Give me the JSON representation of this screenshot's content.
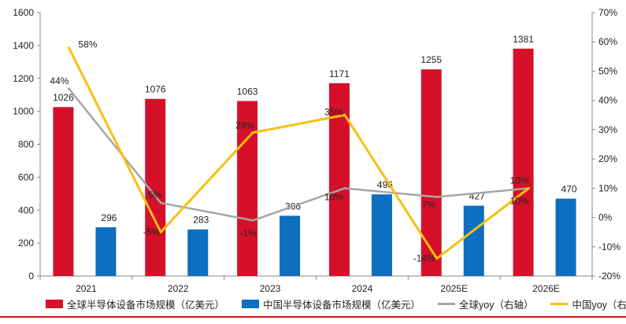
{
  "chart_data": {
    "type": "bar",
    "title": "",
    "categories": [
      "2021",
      "2022",
      "2023",
      "2024",
      "2025E",
      "2026E"
    ],
    "ylim_left": [
      0,
      1600
    ],
    "yticks_left": [
      0,
      200,
      400,
      600,
      800,
      1000,
      1200,
      1400,
      1600
    ],
    "ylim_right": [
      -20,
      70
    ],
    "yticks_right": [
      "-20%",
      "-10%",
      "0%",
      "10%",
      "20%",
      "30%",
      "40%",
      "50%",
      "60%",
      "70%"
    ],
    "grid": false,
    "legend_position": "bottom",
    "bar_series": [
      {
        "name": "全球半导体设备市场规模（亿美元）",
        "values": [
          1026,
          1076,
          1063,
          1171,
          1255,
          1381
        ],
        "labels": [
          "1026",
          "1076",
          "1063",
          "1171",
          "1255",
          "1381"
        ],
        "color": "#d7102a"
      },
      {
        "name": "中国半导体设备市场规模（亿美元）",
        "values": [
          296,
          283,
          366,
          496,
          427,
          470
        ],
        "labels": [
          "296",
          "283",
          "366",
          "496",
          "427",
          "470"
        ],
        "color": "#0c6fc0"
      }
    ],
    "line_series": [
      {
        "name": "全球yoy（右轴）",
        "values": [
          44,
          5,
          -1,
          10,
          7,
          10
        ],
        "labels": [
          "44%",
          "5%",
          "-1%",
          "10%",
          "7%",
          "10%"
        ],
        "color": "#a6a6a6"
      },
      {
        "name": "中国yoy（右轴）",
        "values": [
          58,
          -5,
          29,
          35,
          -14,
          10
        ],
        "labels": [
          "58%",
          "-5%",
          "29%",
          "35%",
          "-14%",
          "10%"
        ],
        "color": "#f5c00f"
      }
    ]
  },
  "colors": {
    "axis": "#888888",
    "text": "#222222",
    "rule": "#d7102a"
  }
}
